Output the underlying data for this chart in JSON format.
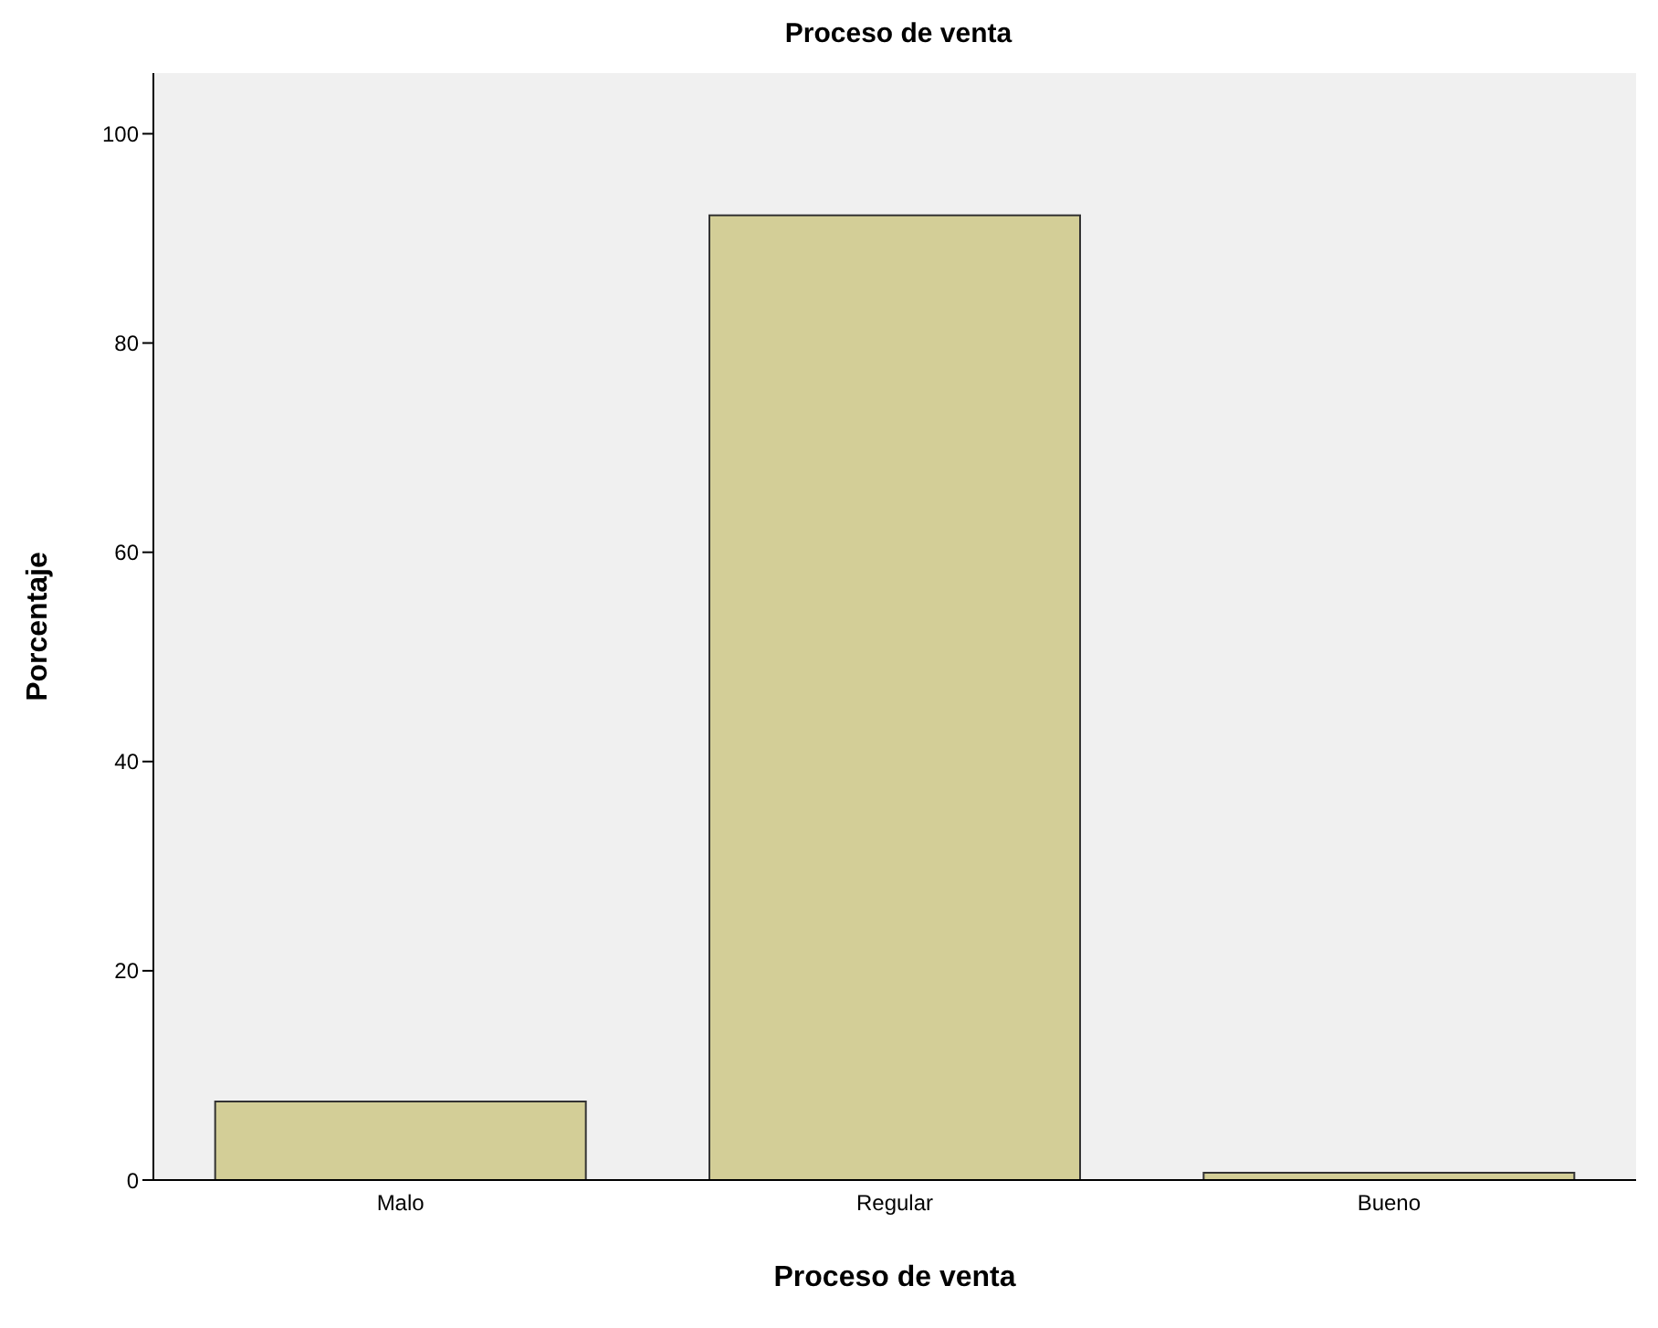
{
  "chart_data": {
    "type": "bar",
    "title": "Proceso de venta",
    "xlabel": "Proceso de venta",
    "ylabel": "Porcentaje",
    "categories": [
      "Malo",
      "Regular",
      "Bueno"
    ],
    "values": [
      7.5,
      92.2,
      0.7
    ],
    "color": "#d3ce97",
    "ylim": [
      0,
      105.8
    ],
    "yticks": [
      0,
      20,
      40,
      60,
      80,
      100
    ],
    "grid": false
  }
}
